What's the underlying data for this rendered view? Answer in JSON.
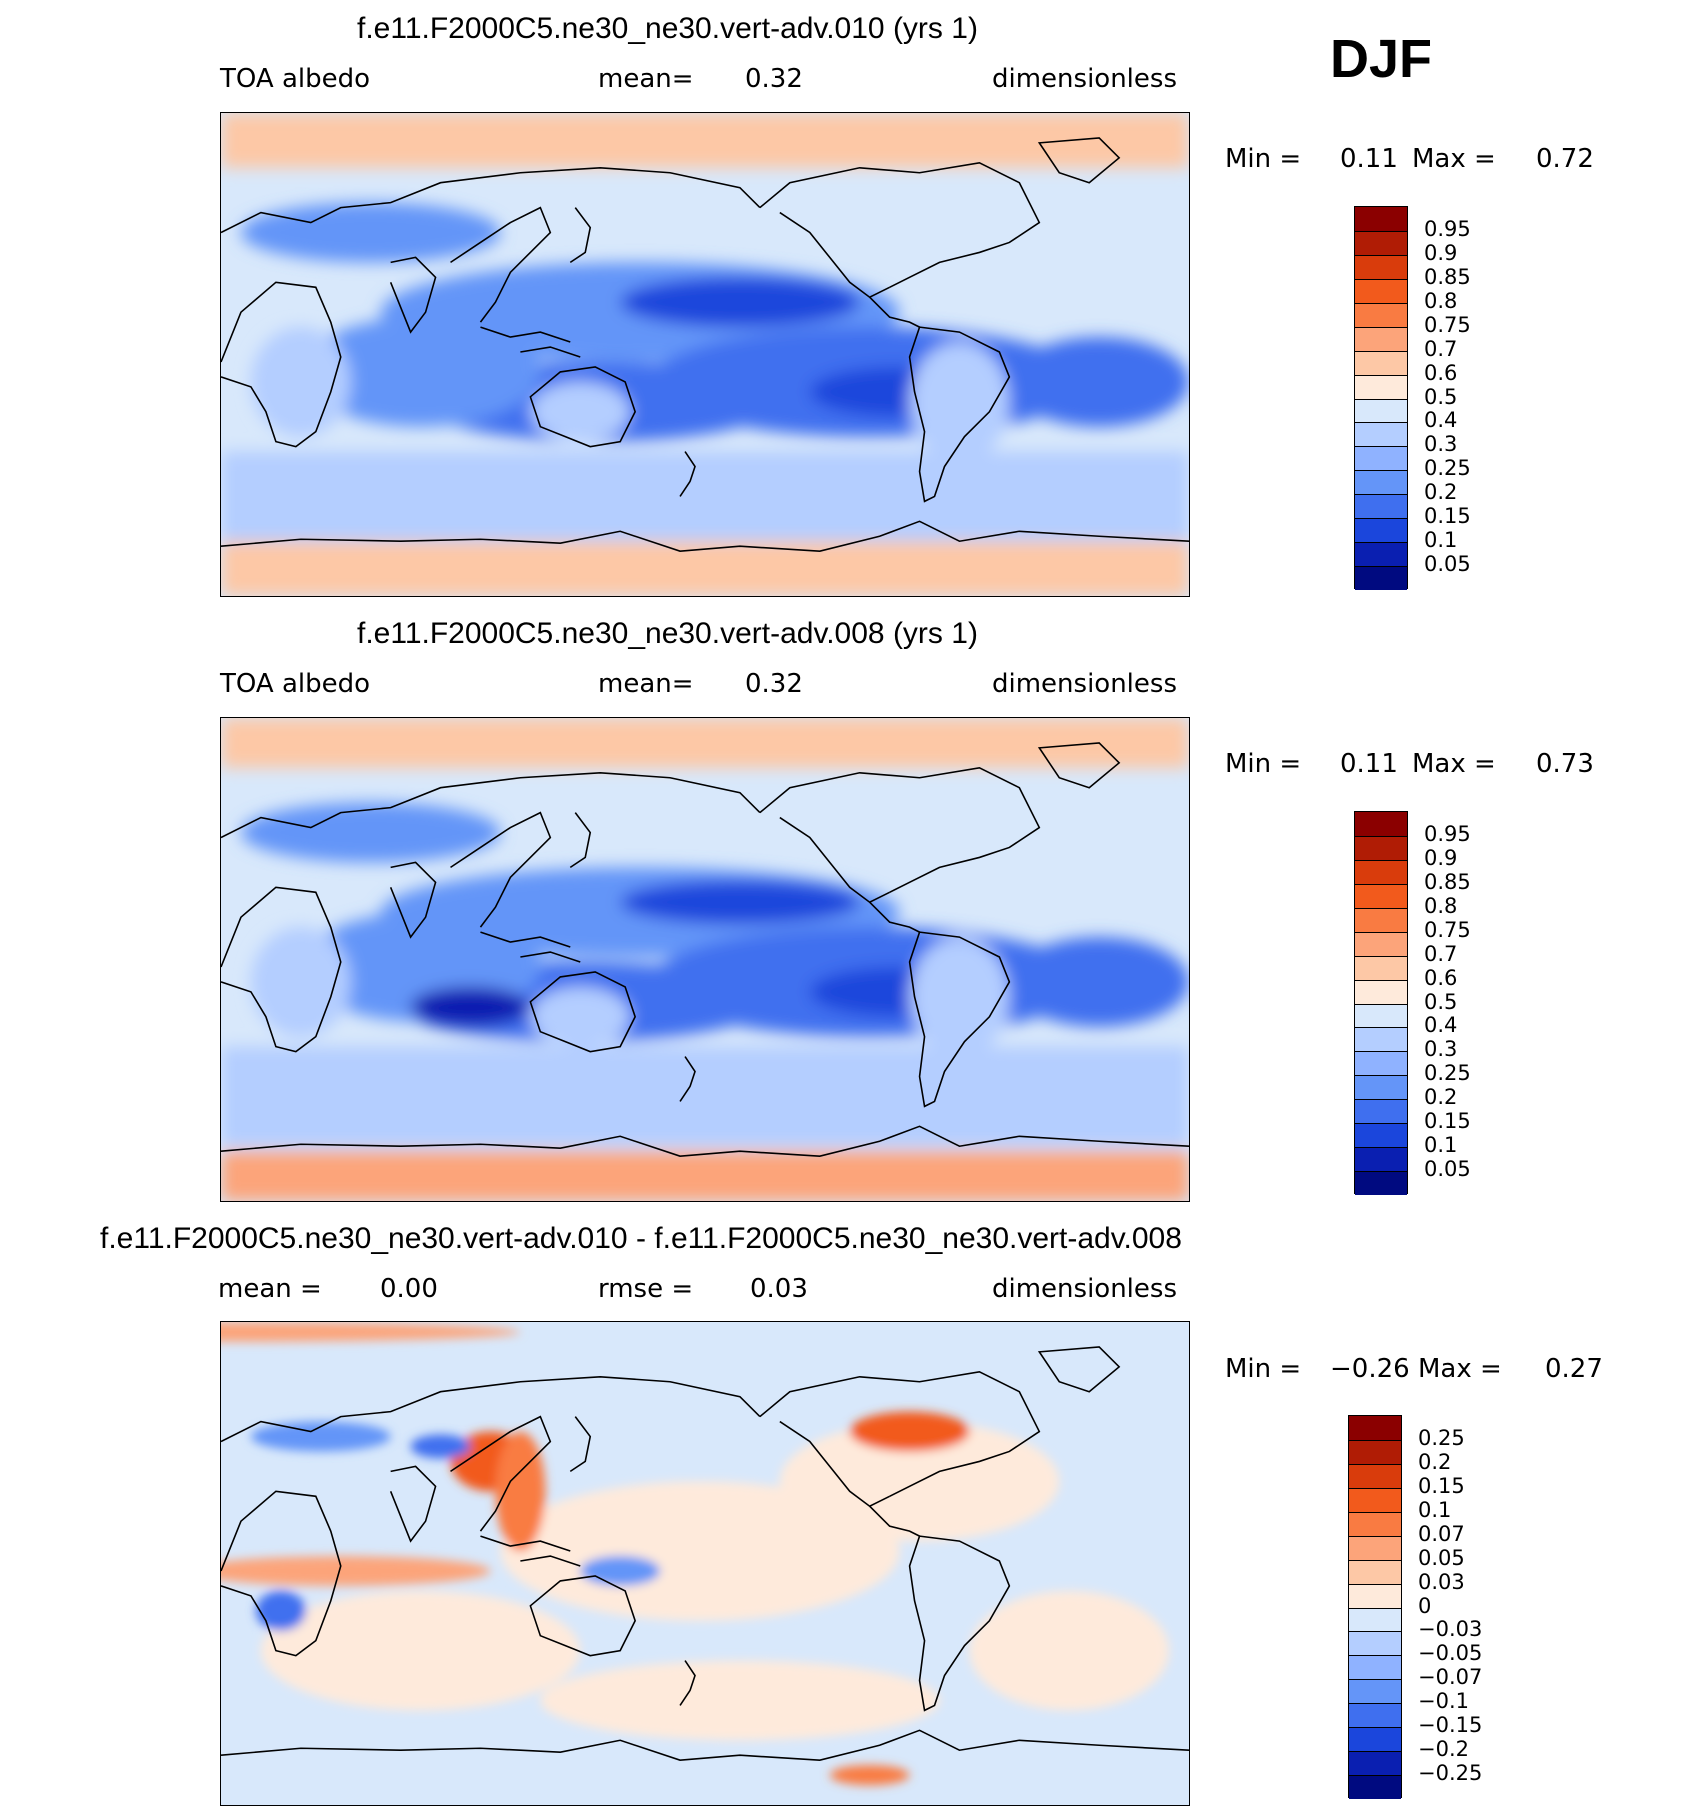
{
  "season": "DJF",
  "panels": [
    {
      "title": "f.e11.F2000C5.ne30_ne30.vert-adv.010 (yrs 1)",
      "left_label": "TOA albedo",
      "center_label": "mean=",
      "center_value": "0.32",
      "right_label": "dimensionless",
      "min_label": "Min =",
      "min_value": "0.11",
      "max_label": "Max =",
      "max_value": "0.72"
    },
    {
      "title": "f.e11.F2000C5.ne30_ne30.vert-adv.008 (yrs 1)",
      "left_label": "TOA albedo",
      "center_label": "mean=",
      "center_value": "0.32",
      "right_label": "dimensionless",
      "min_label": "Min =",
      "min_value": "0.11",
      "max_label": "Max =",
      "max_value": "0.73"
    },
    {
      "title": "f.e11.F2000C5.ne30_ne30.vert-adv.010 - f.e11.F2000C5.ne30_ne30.vert-adv.008",
      "left_label": "mean =",
      "left_value": "0.00",
      "center_label": "rmse =",
      "center_value": "0.03",
      "right_label": "dimensionless",
      "min_label": "Min =",
      "min_value": "−0.26",
      "max_label": "Max =",
      "max_value": "0.27"
    }
  ],
  "chart_data": [
    {
      "type": "heatmap",
      "title": "f.e11.F2000C5.ne30_ne30.vert-adv.010 (yrs 1)",
      "variable": "TOA albedo",
      "units": "dimensionless",
      "mean": 0.32,
      "min": 0.11,
      "max": 0.72,
      "colorbar_levels": [
        "0.95",
        "0.9",
        "0.85",
        "0.8",
        "0.75",
        "0.7",
        "0.6",
        "0.5",
        "0.4",
        "0.3",
        "0.25",
        "0.2",
        "0.15",
        "0.1",
        "0.05"
      ],
      "colorbar_colors": [
        "#8b0000",
        "#b01c05",
        "#d93c0c",
        "#f25a1c",
        "#f97b42",
        "#fca47a",
        "#fdc8a6",
        "#feeadb",
        "#d8e8fb",
        "#b4ceff",
        "#8fb2ff",
        "#6495f8",
        "#3f6fef",
        "#1b46dc",
        "#0a1fb1",
        "#000a80"
      ]
    },
    {
      "type": "heatmap",
      "title": "f.e11.F2000C5.ne30_ne30.vert-adv.008 (yrs 1)",
      "variable": "TOA albedo",
      "units": "dimensionless",
      "mean": 0.32,
      "min": 0.11,
      "max": 0.73,
      "colorbar_levels": [
        "0.95",
        "0.9",
        "0.85",
        "0.8",
        "0.75",
        "0.7",
        "0.6",
        "0.5",
        "0.4",
        "0.3",
        "0.25",
        "0.2",
        "0.15",
        "0.1",
        "0.05"
      ],
      "colorbar_colors": [
        "#8b0000",
        "#b01c05",
        "#d93c0c",
        "#f25a1c",
        "#f97b42",
        "#fca47a",
        "#fdc8a6",
        "#feeadb",
        "#d8e8fb",
        "#b4ceff",
        "#8fb2ff",
        "#6495f8",
        "#3f6fef",
        "#1b46dc",
        "#0a1fb1",
        "#000a80"
      ]
    },
    {
      "type": "heatmap",
      "title": "f.e11.F2000C5.ne30_ne30.vert-adv.010 - f.e11.F2000C5.ne30_ne30.vert-adv.008",
      "units": "dimensionless",
      "mean": 0.0,
      "rmse": 0.03,
      "min": -0.26,
      "max": 0.27,
      "colorbar_levels": [
        "0.25",
        "0.2",
        "0.15",
        "0.1",
        "0.07",
        "0.05",
        "0.03",
        "0",
        "−0.03",
        "−0.05",
        "−0.07",
        "−0.1",
        "−0.15",
        "−0.2",
        "−0.25"
      ],
      "colorbar_colors": [
        "#8b0000",
        "#b01c05",
        "#d93c0c",
        "#f25a1c",
        "#f97b42",
        "#fca47a",
        "#fdc8a6",
        "#feeadb",
        "#d8e8fb",
        "#b4ceff",
        "#8fb2ff",
        "#6495f8",
        "#3f6fef",
        "#1b46dc",
        "#0a1fb1",
        "#000a80"
      ]
    }
  ]
}
